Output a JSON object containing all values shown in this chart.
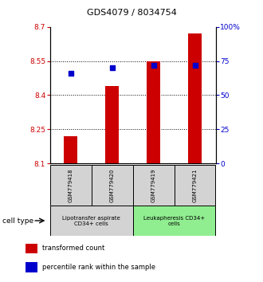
{
  "title": "GDS4079 / 8034754",
  "samples": [
    "GSM779418",
    "GSM779420",
    "GSM779419",
    "GSM779421"
  ],
  "red_values": [
    8.22,
    8.44,
    8.55,
    8.67
  ],
  "blue_values": [
    66,
    70,
    72,
    72
  ],
  "ylim_left": [
    8.1,
    8.7
  ],
  "ylim_right": [
    0,
    100
  ],
  "yticks_left": [
    8.1,
    8.25,
    8.4,
    8.55,
    8.7
  ],
  "yticks_right": [
    0,
    25,
    50,
    75,
    100
  ],
  "ytick_labels_left": [
    "8.1",
    "8.25",
    "8.4",
    "8.55",
    "8.7"
  ],
  "ytick_labels_right": [
    "0",
    "25",
    "50",
    "75",
    "100%"
  ],
  "groups": [
    {
      "label": "Lipotransfer aspirate\nCD34+ cells",
      "samples": [
        0,
        1
      ],
      "color": "#d3d3d3"
    },
    {
      "label": "Leukapheresis CD34+\ncells",
      "samples": [
        2,
        3
      ],
      "color": "#90EE90"
    }
  ],
  "bar_color": "#cc0000",
  "dot_color": "#0000cc",
  "bar_width": 0.32,
  "left_tick_color": "#cc0000",
  "right_tick_color": "#0000cc",
  "cell_type_label": "cell type",
  "legend_red": "transformed count",
  "legend_blue": "percentile rank within the sample",
  "title_fontsize": 8,
  "tick_fontsize": 6.5,
  "label_fontsize": 6,
  "legend_fontsize": 6
}
